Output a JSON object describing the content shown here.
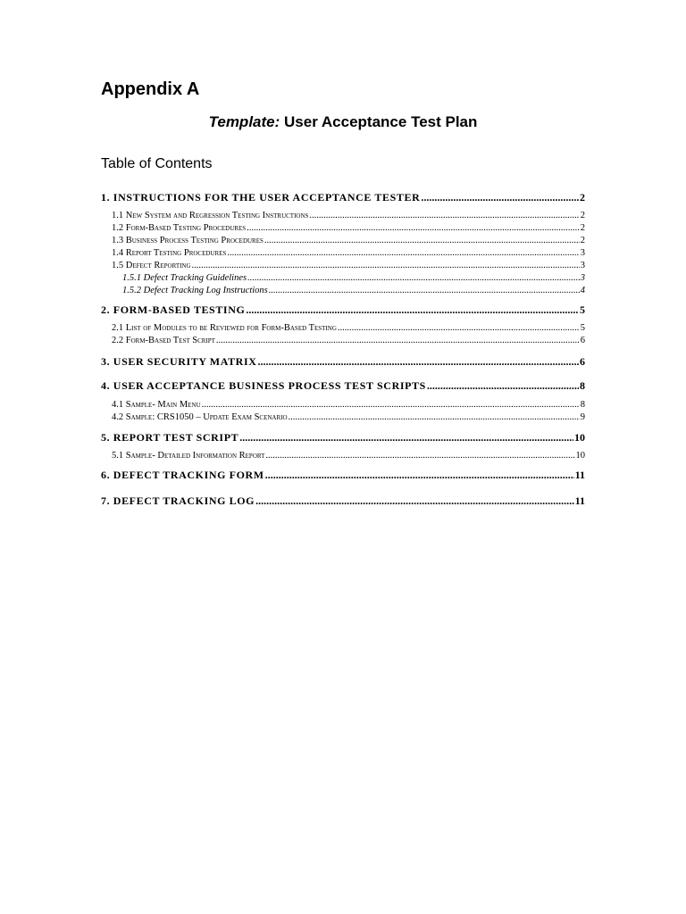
{
  "appendix": "Appendix A",
  "title": {
    "prefix": "Template:",
    "text": "User Acceptance Test Plan"
  },
  "toc_heading": "Table of Contents",
  "toc": [
    {
      "level": 1,
      "label": "1. INSTRUCTIONS FOR THE USER ACCEPTANCE TESTER",
      "page": "2"
    },
    {
      "level": 2,
      "label": "1.1 New System and Regression Testing Instructions",
      "page": "2"
    },
    {
      "level": 2,
      "label": "1.2 Form-Based Testing Procedures",
      "page": "2"
    },
    {
      "level": 2,
      "label": "1.3 Business Process Testing Procedures",
      "page": "2"
    },
    {
      "level": 2,
      "label": "1.4 Report Testing Procedures",
      "page": "3"
    },
    {
      "level": 2,
      "label": "1.5 Defect Reporting",
      "page": "3"
    },
    {
      "level": 3,
      "label": "1.5.1 Defect Tracking Guidelines",
      "page": "3"
    },
    {
      "level": 3,
      "label": "1.5.2 Defect Tracking Log Instructions",
      "page": "4"
    },
    {
      "level": 1,
      "label": "2. FORM-BASED TESTING",
      "page": "5"
    },
    {
      "level": 2,
      "label": "2.1 List of Modules to be Reviewed for Form-Based Testing",
      "page": "5"
    },
    {
      "level": 2,
      "label": "2.2 Form-Based Test Script",
      "page": "6"
    },
    {
      "level": 1,
      "label": "3. USER SECURITY MATRIX",
      "page": "6"
    },
    {
      "level": 1,
      "label": "4. USER ACCEPTANCE BUSINESS PROCESS TEST SCRIPTS",
      "page": "8"
    },
    {
      "level": 2,
      "label": "4.1 Sample- Main Menu",
      "page": "8"
    },
    {
      "level": 2,
      "label": "4.2 Sample: CRS1050 – Update Exam Scenario",
      "page": "9"
    },
    {
      "level": 1,
      "label": "5. REPORT TEST SCRIPT",
      "page": "10"
    },
    {
      "level": 2,
      "label": "5.1 Sample- Detailed Information Report",
      "page": "10"
    },
    {
      "level": 1,
      "label": "6. DEFECT TRACKING FORM",
      "page": "11"
    },
    {
      "level": 1,
      "label": "7. DEFECT TRACKING LOG",
      "page": "11"
    }
  ]
}
